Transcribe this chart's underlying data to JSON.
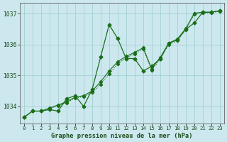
{
  "title": "Graphe pression niveau de la mer (hPa)",
  "xticks": [
    0,
    1,
    2,
    3,
    4,
    5,
    6,
    7,
    8,
    9,
    10,
    11,
    12,
    13,
    14,
    15,
    16,
    17,
    18,
    19,
    20,
    21,
    22,
    23
  ],
  "yticks": [
    1034,
    1035,
    1036,
    1037
  ],
  "ylim": [
    1033.45,
    1037.35
  ],
  "xlim": [
    -0.5,
    23.5
  ],
  "bg_color": "#cce8ee",
  "grid_color": "#99cccc",
  "line_color": "#1a6e1a",
  "x": [
    0,
    1,
    2,
    3,
    4,
    5,
    6,
    7,
    8,
    9,
    10,
    11,
    12,
    13,
    14,
    15,
    16,
    17,
    18,
    19,
    20,
    21,
    22,
    23
  ],
  "y_volatile": [
    1033.65,
    1033.85,
    1033.85,
    1033.9,
    1033.85,
    1034.25,
    1034.35,
    1034.0,
    1034.55,
    1035.6,
    1036.65,
    1036.2,
    1035.55,
    1035.55,
    1035.15,
    1035.3,
    1035.55,
    1036.05,
    1036.15,
    1036.5,
    1036.7,
    1037.05,
    1037.05,
    1037.1
  ],
  "y_smooth1": [
    1033.65,
    1033.85,
    1033.85,
    1033.95,
    1034.05,
    1034.15,
    1034.3,
    1034.35,
    1034.5,
    1034.8,
    1035.15,
    1035.45,
    1035.62,
    1035.75,
    1035.9,
    1035.22,
    1035.58,
    1036.05,
    1036.18,
    1036.52,
    1037.02,
    1037.05,
    1037.05,
    1037.1
  ],
  "y_smooth2": [
    1033.65,
    1033.85,
    1033.85,
    1033.92,
    1034.02,
    1034.12,
    1034.27,
    1034.32,
    1034.45,
    1034.72,
    1035.05,
    1035.38,
    1035.57,
    1035.7,
    1035.86,
    1035.18,
    1035.53,
    1036.0,
    1036.13,
    1036.48,
    1036.98,
    1037.03,
    1037.03,
    1037.08
  ]
}
